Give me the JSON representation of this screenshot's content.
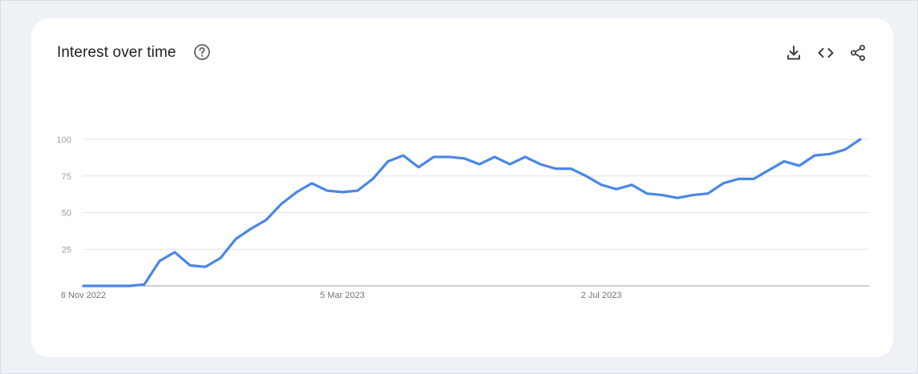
{
  "card": {
    "title": "Interest over time"
  },
  "icons": {
    "help": "help-circle-icon",
    "download": "download-icon",
    "embed": "code-embed-icon",
    "share": "share-icon"
  },
  "colors": {
    "line": "#4a86e8",
    "grid": "#e3e3e3",
    "axis": "#9aa0a6",
    "icon": "#3c4043"
  },
  "chart_data": {
    "type": "line",
    "title": "Interest over time",
    "xlabel": "",
    "ylabel": "",
    "ylim": [
      0,
      100
    ],
    "yticks": [
      25,
      50,
      75,
      100
    ],
    "x_tick_labels": [
      {
        "label": "6 Nov 2022",
        "index": 0
      },
      {
        "label": "5 Mar 2023",
        "index": 17
      },
      {
        "label": "2 Jul 2023",
        "index": 34
      }
    ],
    "grid": true,
    "series": [
      {
        "values": [
          0,
          0,
          0,
          0,
          1,
          17,
          23,
          14,
          13,
          19,
          32,
          39,
          45,
          56,
          64,
          70,
          65,
          64,
          65,
          73,
          85,
          89,
          81,
          88,
          88,
          87,
          83,
          88,
          83,
          88,
          83,
          80,
          80,
          75,
          69,
          66,
          69,
          63,
          62,
          60,
          62,
          63,
          70,
          73,
          73,
          79,
          85,
          82,
          89,
          90,
          93,
          100
        ]
      }
    ]
  }
}
